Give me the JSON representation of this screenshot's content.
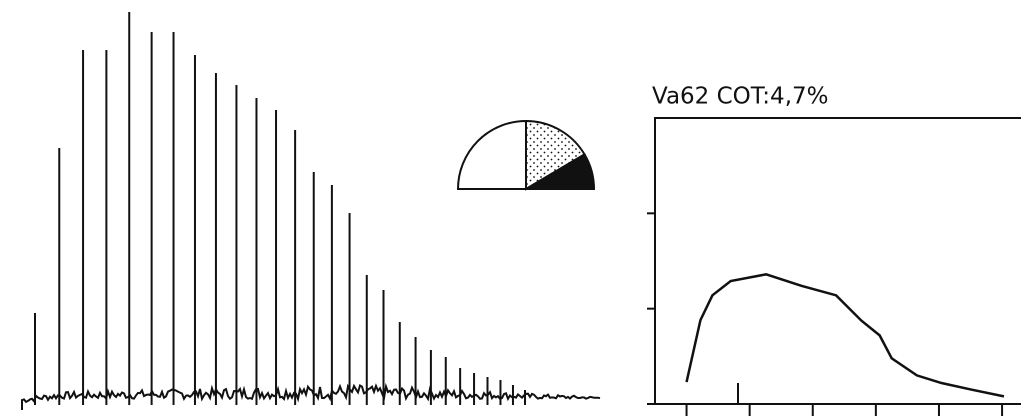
{
  "chart_data": [
    {
      "type": "bar",
      "color": "#111111",
      "values": [
        92,
        257,
        355,
        355,
        393,
        373,
        373,
        350,
        332,
        320,
        307,
        295,
        275,
        233,
        220,
        192,
        130,
        115,
        83,
        68,
        55,
        48,
        37,
        32,
        28,
        25,
        20,
        15
      ]
    },
    {
      "type": "pie",
      "values": [
        50,
        33,
        17
      ],
      "colors": [
        "#ffffff",
        "dots",
        "#111111"
      ]
    },
    {
      "type": "line",
      "title": "Va62 COT:4,7%",
      "color": "#111111",
      "x": [
        0,
        0.22,
        0.41,
        0.7,
        1.26,
        1.82,
        2.37,
        2.77,
        3.06,
        3.25,
        3.65,
        4.04,
        4.52,
        5.03
      ],
      "values": [
        0.23,
        0.88,
        1.14,
        1.29,
        1.36,
        1.24,
        1.14,
        0.875,
        0.72,
        0.48,
        0.3,
        0.22,
        0.15,
        0.08
      ],
      "xlim": [
        -0.5,
        5.3
      ],
      "xticks": [
        0,
        1,
        2,
        3,
        4,
        5
      ],
      "ylim": [
        0,
        3
      ],
      "yticks": [
        0,
        1,
        2
      ]
    }
  ]
}
